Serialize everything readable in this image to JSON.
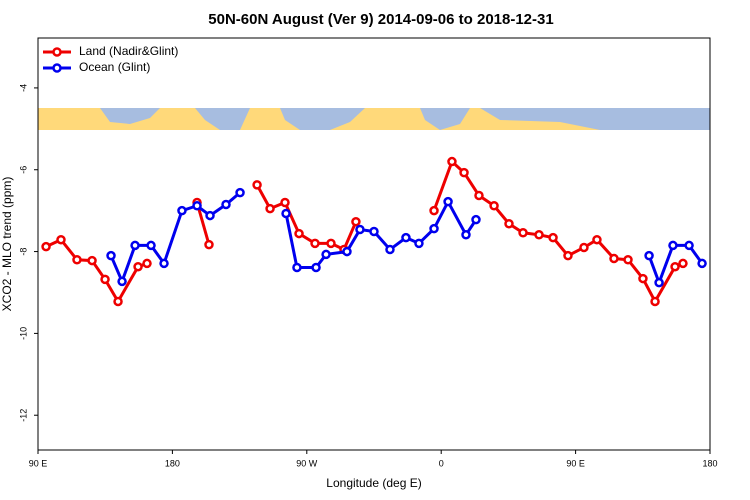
{
  "chart_data": {
    "type": "line",
    "title": "50N-60N August (Ver 9)   2014-09-06 to 2018-12-31",
    "x_label": "Longitude (deg E)",
    "y_label": "XCO2 - MLO trend (ppm)",
    "xlim": [
      90,
      540
    ],
    "xticks": [
      {
        "value": 90,
        "label": "90 E"
      },
      180,
      {
        "value": 270,
        "label": "90 W"
      },
      {
        "value": 360,
        "label": "0"
      },
      {
        "value": 450,
        "label": "90 E"
      },
      {
        "value": 540,
        "label": "180"
      }
    ],
    "ylim": [
      -12.85,
      -2.78
    ],
    "yticks": [
      -4,
      -6,
      -8,
      -10,
      -12
    ],
    "legend": "top-left",
    "series": [
      {
        "name": "Land (Nadir&Glint)",
        "color": "#ee0000",
        "x": [
          95.4,
          105.4,
          116.1,
          126.2,
          134.9,
          143.6,
          157.0,
          163.0,
          null,
          196.5,
          204.5,
          null,
          236.7,
          245.4,
          255.4,
          264.8,
          275.5,
          286.2,
          294.9,
          302.9,
          null,
          355.2,
          367.2,
          375.3,
          385.3,
          395.4,
          405.4,
          414.8,
          425.5,
          434.9,
          444.9,
          455.6,
          464.3,
          475.7,
          485.1,
          495.1,
          503.2,
          516.6,
          521.9
        ],
        "values": [
          -7.88,
          -7.71,
          -8.2,
          -8.22,
          -8.68,
          -9.22,
          -8.37,
          -8.29,
          null,
          -6.8,
          -7.83,
          null,
          -6.37,
          -6.95,
          -6.8,
          -7.56,
          -7.8,
          -7.8,
          -7.95,
          -7.27,
          null,
          -7.0,
          -5.8,
          -6.07,
          -6.63,
          -6.88,
          -7.32,
          -7.54,
          -7.59,
          -7.66,
          -8.1,
          -7.9,
          -7.71,
          -8.17,
          -8.2,
          -8.66,
          -9.22,
          -8.37,
          -8.29
        ]
      },
      {
        "name": "Ocean (Glint)",
        "color": "#0000ee",
        "x": [
          138.9,
          146.3,
          155.0,
          165.7,
          174.4,
          186.4,
          196.5,
          205.2,
          215.9,
          225.3,
          null,
          256.1,
          263.4,
          276.2,
          282.9,
          296.9,
          305.6,
          315.0,
          325.7,
          336.4,
          345.1,
          355.2,
          364.6,
          376.6,
          383.3,
          null,
          499.2,
          505.9,
          515.2,
          526.0,
          534.7
        ],
        "values": [
          -8.1,
          -8.73,
          -7.85,
          -7.85,
          -8.29,
          -7.0,
          -6.88,
          -7.12,
          -6.85,
          -6.56,
          null,
          -7.07,
          -8.39,
          -8.39,
          -8.07,
          -8.0,
          -7.46,
          -7.51,
          -7.95,
          -7.66,
          -7.8,
          -7.44,
          -6.78,
          -7.59,
          -7.22,
          null,
          -8.1,
          -8.76,
          -7.85,
          -7.85,
          -8.29
        ]
      }
    ]
  }
}
